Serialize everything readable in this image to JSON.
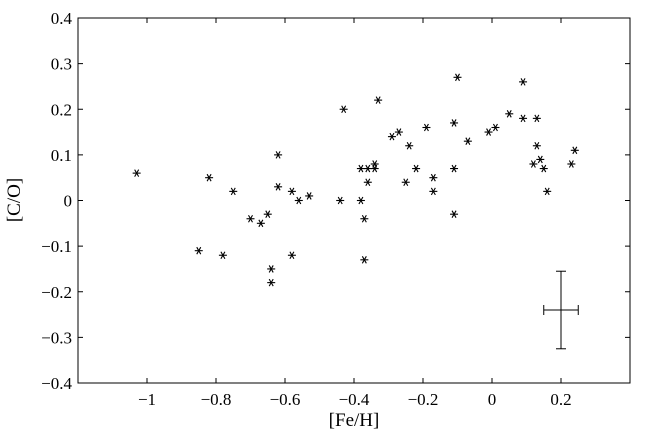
{
  "chart_data": {
    "type": "scatter",
    "title": "",
    "xlabel": "[Fe/H]",
    "ylabel": "[C/O]",
    "xlim": [
      -1.2,
      0.4
    ],
    "ylim": [
      -0.4,
      0.4
    ],
    "xticks": [
      -1,
      -0.8,
      -0.6,
      -0.4,
      -0.2,
      0,
      0.2
    ],
    "xtick_labels": [
      "−1",
      "−0.8",
      "−0.6",
      "−0.4",
      "−0.2",
      "0",
      "0.2"
    ],
    "yticks": [
      -0.4,
      -0.3,
      -0.2,
      -0.1,
      0,
      0.1,
      0.2,
      0.3,
      0.4
    ],
    "ytick_labels": [
      "−0.4",
      "−0.3",
      "−0.2",
      "−0.1",
      "0",
      "0.1",
      "0.2",
      "0.3",
      "0.4"
    ],
    "grid": false,
    "marker": "asterisk",
    "color": "#000000",
    "points": [
      {
        "x": -1.03,
        "y": 0.06
      },
      {
        "x": -0.85,
        "y": -0.11
      },
      {
        "x": -0.82,
        "y": 0.05
      },
      {
        "x": -0.78,
        "y": -0.12
      },
      {
        "x": -0.75,
        "y": 0.02
      },
      {
        "x": -0.7,
        "y": -0.04
      },
      {
        "x": -0.67,
        "y": -0.05
      },
      {
        "x": -0.65,
        "y": -0.03
      },
      {
        "x": -0.64,
        "y": -0.15
      },
      {
        "x": -0.64,
        "y": -0.18
      },
      {
        "x": -0.62,
        "y": 0.1
      },
      {
        "x": -0.62,
        "y": 0.03
      },
      {
        "x": -0.58,
        "y": 0.02
      },
      {
        "x": -0.58,
        "y": -0.12
      },
      {
        "x": -0.56,
        "y": 0.0
      },
      {
        "x": -0.53,
        "y": 0.01
      },
      {
        "x": -0.44,
        "y": 0.0
      },
      {
        "x": -0.43,
        "y": 0.2
      },
      {
        "x": -0.38,
        "y": 0.07
      },
      {
        "x": -0.38,
        "y": 0.0
      },
      {
        "x": -0.37,
        "y": -0.04
      },
      {
        "x": -0.37,
        "y": -0.13
      },
      {
        "x": -0.36,
        "y": 0.07
      },
      {
        "x": -0.36,
        "y": 0.04
      },
      {
        "x": -0.34,
        "y": 0.08
      },
      {
        "x": -0.34,
        "y": 0.07
      },
      {
        "x": -0.33,
        "y": 0.22
      },
      {
        "x": -0.29,
        "y": 0.14
      },
      {
        "x": -0.27,
        "y": 0.15
      },
      {
        "x": -0.25,
        "y": 0.04
      },
      {
        "x": -0.24,
        "y": 0.12
      },
      {
        "x": -0.22,
        "y": 0.07
      },
      {
        "x": -0.19,
        "y": 0.16
      },
      {
        "x": -0.17,
        "y": 0.05
      },
      {
        "x": -0.17,
        "y": 0.02
      },
      {
        "x": -0.11,
        "y": 0.17
      },
      {
        "x": -0.11,
        "y": 0.07
      },
      {
        "x": -0.11,
        "y": -0.03
      },
      {
        "x": -0.1,
        "y": 0.27
      },
      {
        "x": -0.07,
        "y": 0.13
      },
      {
        "x": -0.01,
        "y": 0.15
      },
      {
        "x": 0.01,
        "y": 0.16
      },
      {
        "x": 0.05,
        "y": 0.19
      },
      {
        "x": 0.09,
        "y": 0.26
      },
      {
        "x": 0.09,
        "y": 0.18
      },
      {
        "x": 0.12,
        "y": 0.08
      },
      {
        "x": 0.13,
        "y": 0.18
      },
      {
        "x": 0.13,
        "y": 0.12
      },
      {
        "x": 0.14,
        "y": 0.09
      },
      {
        "x": 0.15,
        "y": 0.07
      },
      {
        "x": 0.16,
        "y": 0.02
      },
      {
        "x": 0.23,
        "y": 0.08
      },
      {
        "x": 0.24,
        "y": 0.11
      }
    ],
    "error_bar": {
      "x": 0.2,
      "y": -0.24,
      "xerr": 0.05,
      "yerr": 0.085
    }
  }
}
